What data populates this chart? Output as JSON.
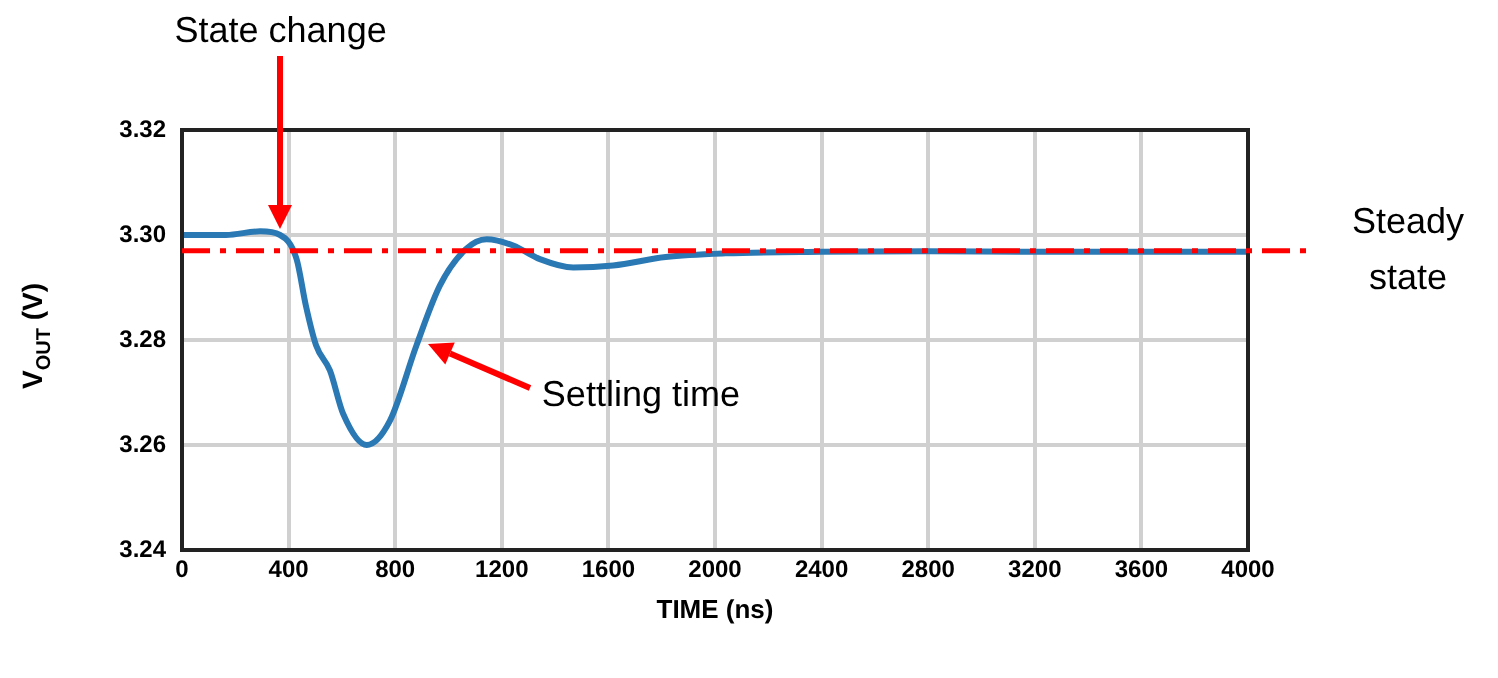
{
  "chart_data": {
    "type": "line",
    "xlabel": "TIME (ns)",
    "ylabel": "V$_{OUT}$ (V)",
    "x": [
      0,
      165,
      293,
      368,
      430,
      465,
      503,
      555,
      605,
      693,
      780,
      880,
      968,
      1065,
      1143,
      1243,
      1343,
      1468,
      1618,
      1815,
      2040,
      2400,
      2800,
      3200,
      3600,
      4000
    ],
    "series": [
      {
        "color": "#2a78b4",
        "values": [
          3.3,
          3.3,
          3.3007,
          3.3,
          3.2954,
          3.2865,
          3.279,
          3.2742,
          3.2659,
          3.26,
          3.2646,
          3.279,
          3.2904,
          3.2973,
          3.2992,
          3.298,
          3.2954,
          3.2938,
          3.2942,
          3.2958,
          3.2965,
          3.2968,
          3.2969,
          3.2968,
          3.2968,
          3.2968
        ]
      }
    ],
    "xlim": [
      0,
      4000
    ],
    "xticks": [
      0,
      400,
      800,
      1200,
      1600,
      2000,
      2400,
      2800,
      3200,
      3600,
      4000
    ],
    "ylim": [
      3.24,
      3.32
    ],
    "yticks": [
      {
        "value": 3.24,
        "label": "3.24"
      },
      {
        "value": 3.26,
        "label": "3.26"
      },
      {
        "value": 3.28,
        "label": "3.28"
      },
      {
        "value": 3.3,
        "label": "3.30"
      },
      {
        "value": 3.32,
        "label": "3.32"
      }
    ],
    "ref_lines": [
      {
        "axis": "y",
        "value": 3.297,
        "label": "Steady state",
        "color": "#ff0000",
        "line_style": "dashdot"
      }
    ],
    "annotations": [
      "State change",
      "Settling time"
    ],
    "grid": true,
    "legend": false,
    "marker": "none",
    "line_style": "solid"
  }
}
